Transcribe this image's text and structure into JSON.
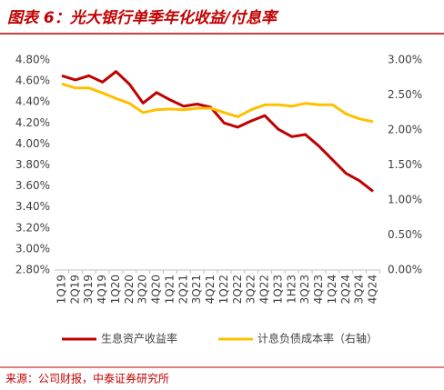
{
  "chart_data": {
    "type": "line",
    "title": "图表 6：光大银行单季年化收益/付息率",
    "source": "来源：公司财报，中泰证券研究所",
    "categories": [
      "1Q19",
      "2Q19",
      "3Q19",
      "4Q19",
      "1Q20",
      "2Q20",
      "3Q20",
      "4Q20",
      "1Q21",
      "2Q21",
      "3Q21",
      "4Q21",
      "1Q22",
      "2Q22",
      "3Q22",
      "4Q22",
      "1Q23",
      "1H23",
      "3Q23",
      "4Q23",
      "1Q24",
      "2Q24",
      "3Q24",
      "4Q24"
    ],
    "series": [
      {
        "name": "生息资产收益率",
        "color": "#c00000",
        "values": [
          4.65,
          4.61,
          4.65,
          4.59,
          4.69,
          4.57,
          4.39,
          4.49,
          4.42,
          4.36,
          4.38,
          4.35,
          4.2,
          4.16,
          4.22,
          4.27,
          4.14,
          4.07,
          4.09,
          3.98,
          3.85,
          3.72,
          3.65,
          3.55
        ]
      },
      {
        "name": "计息负债成本率（右轴）",
        "color": "#ffc000",
        "axis": "y2",
        "values": [
          2.66,
          2.6,
          2.6,
          2.53,
          2.45,
          2.38,
          2.25,
          2.29,
          2.3,
          2.29,
          2.31,
          2.31,
          2.25,
          2.19,
          2.29,
          2.36,
          2.36,
          2.34,
          2.38,
          2.36,
          2.36,
          2.23,
          2.16,
          2.12
        ]
      }
    ],
    "ylim": [
      2.8,
      4.8
    ],
    "yticks": [
      {
        "value": 2.8,
        "label": "2.80%"
      },
      {
        "value": 3.0,
        "label": "3.00%"
      },
      {
        "value": 3.2,
        "label": "3.20%"
      },
      {
        "value": 3.4,
        "label": "3.40%"
      },
      {
        "value": 3.6,
        "label": "3.60%"
      },
      {
        "value": 3.8,
        "label": "3.80%"
      },
      {
        "value": 4.0,
        "label": "4.00%"
      },
      {
        "value": 4.2,
        "label": "4.20%"
      },
      {
        "value": 4.4,
        "label": "4.40%"
      },
      {
        "value": 4.6,
        "label": "4.60%"
      },
      {
        "value": 4.8,
        "label": "4.80%"
      }
    ],
    "y2lim": [
      0,
      3
    ],
    "y2ticks": [
      {
        "value": 0,
        "label": "0.00%"
      },
      {
        "value": 0.5,
        "label": "0.50%"
      },
      {
        "value": 1.0,
        "label": "1.00%"
      },
      {
        "value": 1.5,
        "label": "1.50%"
      },
      {
        "value": 2.0,
        "label": "2.00%"
      },
      {
        "value": 2.5,
        "label": "2.50%"
      },
      {
        "value": 3.0,
        "label": "3.00%"
      }
    ],
    "legend": "bottom"
  }
}
